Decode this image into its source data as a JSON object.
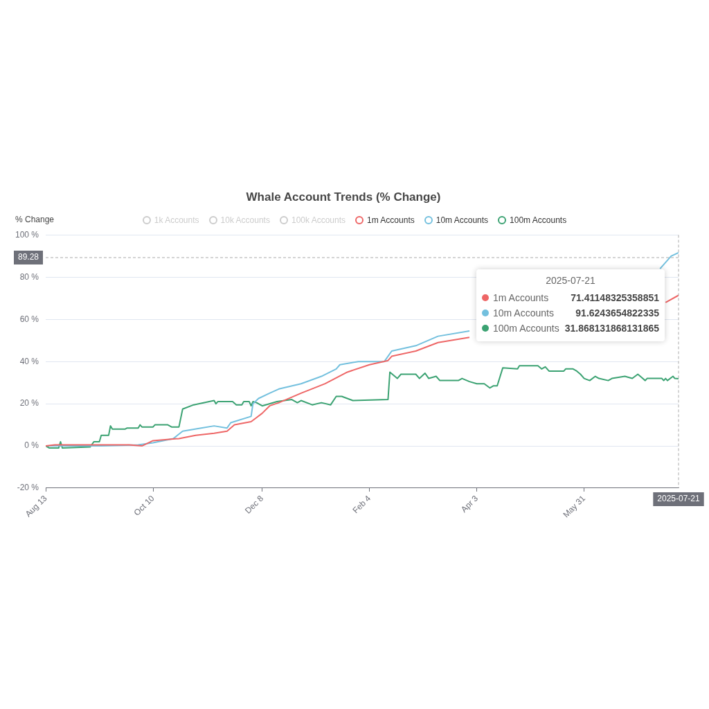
{
  "chart_data": {
    "type": "line",
    "title": "Whale Account Trends (% Change)",
    "ylabel": "% Change",
    "xlim": [
      "2024-08-13",
      "2025-07-21"
    ],
    "xticks": [
      {
        "value": "2024-08-13",
        "label": "Aug 13"
      },
      {
        "value": "2024-10-10",
        "label": "Oct 10"
      },
      {
        "value": "2024-12-08",
        "label": "Dec 8"
      },
      {
        "value": "2025-02-04",
        "label": "Feb 4"
      },
      {
        "value": "2025-04-03",
        "label": "Apr 3"
      },
      {
        "value": "2025-05-31",
        "label": "May 31"
      }
    ],
    "ylim": [
      -20,
      100
    ],
    "yticks": [
      {
        "value": -20,
        "label": "-20 %"
      },
      {
        "value": 0,
        "label": "0 %"
      },
      {
        "value": 20,
        "label": "20 %"
      },
      {
        "value": 40,
        "label": "40 %"
      },
      {
        "value": 60,
        "label": "60 %"
      },
      {
        "value": 80,
        "label": "80 %"
      },
      {
        "value": 100,
        "label": "100 %"
      }
    ],
    "grid": "y",
    "legend": "top",
    "marker": "none",
    "series": [
      {
        "name": "1k Accounts",
        "color": "#cccccc"
      },
      {
        "name": "10k Accounts",
        "color": "#cccccc"
      },
      {
        "name": "100k Accounts",
        "color": "#cccccc"
      },
      {
        "name": "1m Accounts",
        "color": "#ee6666",
        "x": [
          "2024-08-13",
          "2024-08-18",
          "2024-09-27",
          "2024-10-04",
          "2024-10-10",
          "2024-10-24",
          "2024-11-02",
          "2024-11-12",
          "2024-11-19",
          "2024-11-23",
          "2024-12-02",
          "2024-12-05",
          "2024-12-08",
          "2024-12-12",
          "2024-12-17",
          "2024-12-29",
          "2025-01-11",
          "2025-01-23",
          "2025-02-04",
          "2025-02-14",
          "2025-02-16",
          "2025-03-01",
          "2025-03-13",
          "2025-03-30",
          "2025-04-30",
          "2025-07-14",
          "2025-07-21"
        ],
        "values": [
          0,
          0.5,
          0.5,
          0,
          2.5,
          3.5,
          5,
          6,
          7,
          10,
          11.5,
          13.5,
          15.5,
          19,
          20.5,
          25,
          29.5,
          35,
          38.5,
          40.5,
          42.5,
          45,
          49,
          51.5,
          null,
          68,
          71.41148325358851
        ]
      },
      {
        "name": "10m Accounts",
        "color": "#73c0de",
        "x": [
          "2024-08-13",
          "2024-09-12",
          "2024-10-02",
          "2024-10-10",
          "2024-10-21",
          "2024-10-26",
          "2024-11-05",
          "2024-11-12",
          "2024-11-19",
          "2024-11-21",
          "2024-12-02",
          "2024-12-03",
          "2024-12-06",
          "2024-12-12",
          "2024-12-17",
          "2024-12-29",
          "2025-01-09",
          "2025-01-17",
          "2025-01-19",
          "2025-01-29",
          "2025-02-12",
          "2025-02-16",
          "2025-03-01",
          "2025-03-13",
          "2025-03-30",
          "2025-04-30",
          "2025-07-11",
          "2025-07-17",
          "2025-07-21"
        ],
        "values": [
          0,
          0,
          0.5,
          1.5,
          3.5,
          7,
          8.5,
          9.5,
          8.5,
          11,
          14,
          20,
          22.5,
          25,
          27,
          29.5,
          33,
          36.5,
          38.5,
          40,
          40,
          45,
          47.5,
          52,
          54.5,
          null,
          84,
          90,
          91.6243654822335
        ]
      },
      {
        "name": "100m Accounts",
        "color": "#3ba272",
        "x": [
          "2024-08-13",
          "2024-08-15",
          "2024-08-20",
          "2024-08-21",
          "2024-08-22",
          "2024-09-06",
          "2024-09-08",
          "2024-09-11",
          "2024-09-12",
          "2024-09-16",
          "2024-09-17",
          "2024-09-18",
          "2024-09-25",
          "2024-09-26",
          "2024-10-02",
          "2024-10-03",
          "2024-10-04",
          "2024-10-10",
          "2024-10-11",
          "2024-10-18",
          "2024-10-20",
          "2024-10-24",
          "2024-10-26",
          "2024-11-01",
          "2024-11-12",
          "2024-11-13",
          "2024-11-14",
          "2024-11-22",
          "2024-11-24",
          "2024-11-27",
          "2024-11-28",
          "2024-12-01",
          "2024-12-02",
          "2024-12-03",
          "2024-12-05",
          "2024-12-08",
          "2024-12-16",
          "2024-12-24",
          "2024-12-27",
          "2024-12-29",
          "2025-01-04",
          "2025-01-09",
          "2025-01-14",
          "2025-01-17",
          "2025-01-20",
          "2025-01-26",
          "2025-02-14",
          "2025-02-15",
          "2025-02-17",
          "2025-02-19",
          "2025-02-21",
          "2025-03-01",
          "2025-03-03",
          "2025-03-06",
          "2025-03-08",
          "2025-03-12",
          "2025-03-14",
          "2025-03-24",
          "2025-03-26",
          "2025-03-30",
          "2025-04-03",
          "2025-04-07",
          "2025-04-10",
          "2025-04-12",
          "2025-04-14",
          "2025-04-17",
          "2025-04-25",
          "2025-04-26",
          "2025-05-06",
          "2025-05-08",
          "2025-05-10",
          "2025-05-12",
          "2025-05-20",
          "2025-05-21",
          "2025-05-25",
          "2025-05-27",
          "2025-05-29",
          "2025-05-31",
          "2025-06-03",
          "2025-06-06",
          "2025-06-08",
          "2025-06-13",
          "2025-06-15",
          "2025-06-22",
          "2025-06-26",
          "2025-06-29",
          "2025-07-01",
          "2025-07-03",
          "2025-07-04",
          "2025-07-12",
          "2025-07-13",
          "2025-07-14",
          "2025-07-15",
          "2025-07-18",
          "2025-07-19",
          "2025-07-21"
        ],
        "values": [
          0,
          -1,
          -1,
          2,
          -1,
          -0.5,
          2,
          2,
          5,
          5,
          9.5,
          8,
          8,
          8.5,
          8.5,
          10,
          9,
          9,
          10,
          10,
          9,
          9,
          17.5,
          19.5,
          21.5,
          20,
          21,
          21,
          19.5,
          19.5,
          21,
          21,
          19,
          21,
          20.5,
          19,
          21,
          22,
          20.5,
          21.5,
          19.5,
          20.5,
          19.5,
          23.5,
          23.5,
          21.5,
          22,
          35,
          33.5,
          32,
          34,
          34,
          32,
          34.5,
          32,
          33,
          31,
          31,
          32,
          30.5,
          29.5,
          29.5,
          27.5,
          28.5,
          28.5,
          37,
          36.5,
          38,
          38,
          36.5,
          37.5,
          35.5,
          35.5,
          36.5,
          36.5,
          35.5,
          34,
          32,
          31,
          33,
          32,
          31,
          32,
          33,
          32,
          34,
          32.5,
          31,
          32,
          32,
          31,
          32,
          31,
          33,
          32,
          31.868131868131865
        ]
      }
    ],
    "ref_lines": [
      {
        "axis": "y",
        "value": 89.28,
        "label": "89.28",
        "line_style": "dashed"
      },
      {
        "axis": "x",
        "value": "2025-07-21",
        "label": "2025-07-21",
        "line_style": "dashed"
      }
    ],
    "annotations": [
      "2025-07-21",
      "71.41148325358851",
      "91.6243654822335",
      "31.868131868131865"
    ]
  }
}
